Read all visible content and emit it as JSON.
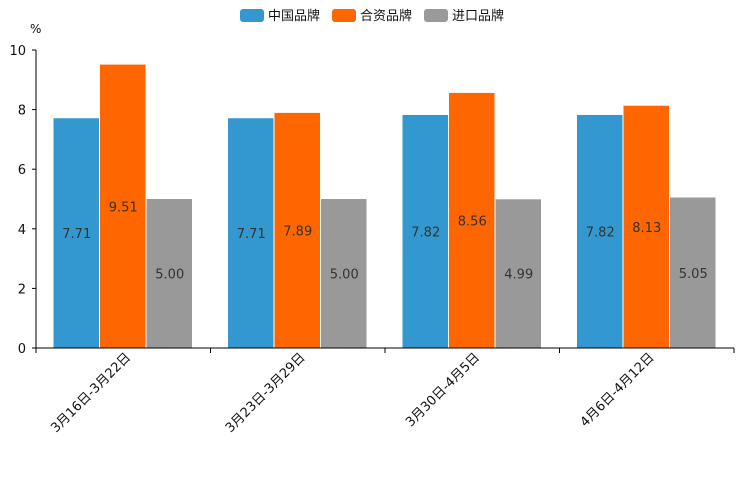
{
  "chart_data": {
    "type": "bar",
    "title": "",
    "xlabel": "",
    "ylabel": "%",
    "ylim": [
      0,
      10
    ],
    "yticks": [
      0,
      2,
      4,
      6,
      8,
      10
    ],
    "categories": [
      "3月16日-3月22日",
      "3月23日-3月29日",
      "3月30日-4月5日",
      "4月6日-4月12日"
    ],
    "series": [
      {
        "name": "中国品牌",
        "color": "#3498d0",
        "values": [
          7.71,
          7.71,
          7.82,
          7.82
        ],
        "labels": [
          "7.71",
          "7.71",
          "7.82",
          "7.82"
        ]
      },
      {
        "name": "合资品牌",
        "color": "#ff6600",
        "values": [
          9.51,
          7.89,
          8.56,
          8.13
        ],
        "labels": [
          "9.51",
          "7.89",
          "8.56",
          "8.13"
        ]
      },
      {
        "name": "进口品牌",
        "color": "#999999",
        "values": [
          5.0,
          5.0,
          4.99,
          5.05
        ],
        "labels": [
          "5.00",
          "5.00",
          "4.99",
          "5.05"
        ]
      }
    ],
    "legend_position": "top-center",
    "grid": false
  }
}
